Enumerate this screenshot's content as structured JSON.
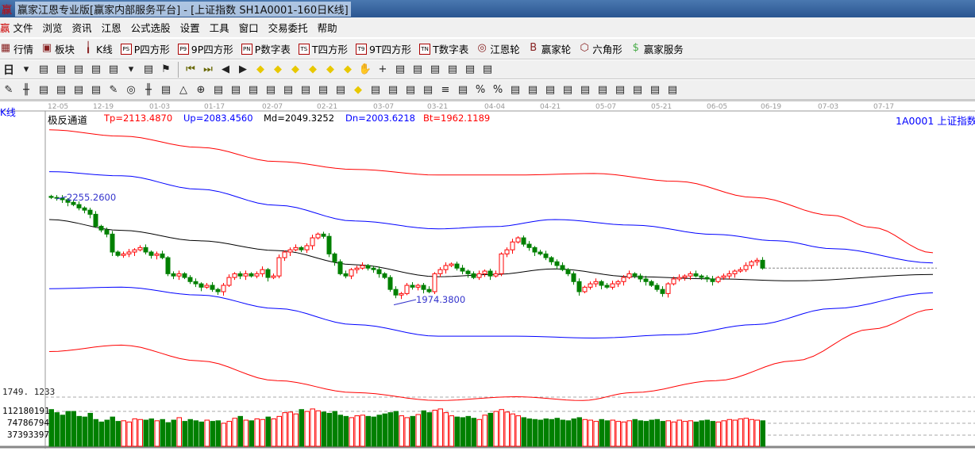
{
  "window": {
    "title": "赢家江恩专业版[赢家内部服务平台] - [上证指数  SH1A0001-160日K线]",
    "logo": "赢"
  },
  "menu": [
    "文件",
    "浏览",
    "资讯",
    "江恩",
    "公式选股",
    "设置",
    "工具",
    "窗口",
    "交易委托",
    "帮助"
  ],
  "toolbar1": [
    {
      "icon": "calendar-grid-icon",
      "g": "▦",
      "label": "行情"
    },
    {
      "icon": "sector-blocks-icon",
      "g": "▣",
      "label": "板块"
    },
    {
      "icon": "candlestick-icon",
      "g": "╽",
      "label": "K线"
    },
    {
      "icon": "ps-icon",
      "g": "PS",
      "label": "P四方形"
    },
    {
      "icon": "p9-icon",
      "g": "P9",
      "label": "9P四方形"
    },
    {
      "icon": "pn-icon",
      "g": "PN",
      "label": "P数字表"
    },
    {
      "icon": "ts-icon",
      "g": "TS",
      "label": "T四方形"
    },
    {
      "icon": "t9-icon",
      "g": "T9",
      "label": "9T四方形"
    },
    {
      "icon": "tn-icon",
      "g": "TN",
      "label": "T数字表"
    },
    {
      "icon": "gann-wheel-icon",
      "g": "◎",
      "label": "江恩轮"
    },
    {
      "icon": "big-wheel-icon",
      "g": "B",
      "label": "赢家轮"
    },
    {
      "icon": "hexagon-icon",
      "g": "⬡",
      "label": "六角形"
    },
    {
      "icon": "dollar-icon",
      "g": "$",
      "label": "赢家服务"
    }
  ],
  "toolbar2": {
    "period": "日",
    "icons": [
      "dropdown-icon",
      "map-icon",
      "clipboard-icon",
      "step-chart-3-icon",
      "step-chart-9-icon",
      "candle-type-icon",
      "dropdown-icon",
      "gann-face-icon",
      "flag-icon",
      "first-icon",
      "last-icon",
      "prev-icon",
      "next-icon",
      "left-diamond-icon",
      "right-diamond-icon",
      "expand-h-icon",
      "shrink-h-icon",
      "expand-icon",
      "shrink-icon",
      "hand-icon",
      "crosshair-icon",
      "lasso-icon",
      "shell-icon",
      "calendar-21-icon",
      "calculator-icon",
      "notebook-icon",
      "network-icon"
    ]
  },
  "toolbar3": {
    "icons": [
      "pencil-icon",
      "lines-icon",
      "gold-1-icon",
      "gold-2-icon",
      "fib-icon",
      "spiral-icon",
      "pencil-2-icon",
      "circle-icon",
      "lines-2-icon",
      "n2-icon",
      "triangle-icon",
      "target-icon",
      "web-icon",
      "square-web-icon",
      "slash-icon",
      "shen-icon",
      "ying-icon",
      "ruler-icon",
      "bracket-icon",
      "fan-icon",
      "diamond-grid-icon",
      "angle-icon",
      "wave-icon",
      "grid-icon",
      "grid-2-icon",
      "lines-3-icon",
      "table-icon",
      "percent-icon",
      "percent-2-icon",
      "coin-icon",
      "coin-2-icon",
      "arrow-icon",
      "bar-1-icon",
      "bar-2-icon",
      "bar-3-icon",
      "bar-4-icon",
      "bar-5-icon",
      "bar-6-icon",
      "bar-7-icon"
    ]
  },
  "chart_data": {
    "type": "candlestick",
    "left_label": "K线",
    "indicator_name": "极反通道",
    "indicators": {
      "Tp": "Tp=2113.4870",
      "Up": "Up=2083.4560",
      "Md": "Md=2049.3252",
      "Dn": "Dn=2003.6218",
      "Bt": "Bt=1962.1189"
    },
    "symbol": "1A0001 上证指数",
    "date_ticks": [
      "12-05",
      "12-19",
      "01-03",
      "01-17",
      "02-07",
      "02-21",
      "03-07",
      "03-21",
      "04-04",
      "04-21",
      "05-07",
      "05-21",
      "06-05",
      "06-19",
      "07-03",
      "07-17"
    ],
    "high_label": "2255.2600",
    "low_label": "1974.3800",
    "price_axis_label": "1749. 1233",
    "close": [
      2255,
      2253,
      2249,
      2242,
      2236,
      2227,
      2221,
      2210,
      2178,
      2168,
      2157,
      2109,
      2100,
      2104,
      2109,
      2115,
      2121,
      2109,
      2100,
      2104,
      2094,
      2051,
      2045,
      2051,
      2041,
      2030,
      2024,
      2015,
      2020,
      2009,
      2003,
      2020,
      2041,
      2051,
      2045,
      2051,
      2045,
      2051,
      2062,
      2041,
      2045,
      2094,
      2109,
      2115,
      2121,
      2115,
      2126,
      2147,
      2157,
      2151,
      2104,
      2083,
      2051,
      2045,
      2062,
      2066,
      2073,
      2066,
      2062,
      2051,
      2041,
      2009,
      1994,
      1998,
      2020,
      2015,
      2020,
      2009,
      2003,
      2051,
      2062,
      2073,
      2077,
      2066,
      2058,
      2051,
      2041,
      2051,
      2058,
      2045,
      2051,
      2104,
      2115,
      2136,
      2147,
      2130,
      2121,
      2109,
      2104,
      2094,
      2083,
      2073,
      2062,
      2051,
      2030,
      2003,
      2015,
      2024,
      2030,
      2020,
      2015,
      2024,
      2030,
      2041,
      2051,
      2045,
      2037,
      2030,
      2020,
      2009,
      1998,
      2024,
      2037,
      2041,
      2045,
      2051,
      2045,
      2041,
      2037,
      2030,
      2041,
      2045,
      2051,
      2058,
      2062,
      2073,
      2083,
      2087,
      2066
    ],
    "channels": {
      "Tp": [
        [
          0,
          2436
        ],
        [
          13,
          2419
        ],
        [
          27,
          2389
        ],
        [
          41,
          2351
        ],
        [
          55,
          2330
        ],
        [
          70,
          2315
        ],
        [
          84,
          2315
        ],
        [
          98,
          2319
        ],
        [
          113,
          2298
        ],
        [
          127,
          2255
        ],
        [
          141,
          2207
        ],
        [
          148,
          2175
        ],
        [
          159,
          2107
        ]
      ],
      "Up": [
        [
          0,
          2324
        ],
        [
          13,
          2313
        ],
        [
          27,
          2277
        ],
        [
          41,
          2234
        ],
        [
          55,
          2192
        ],
        [
          70,
          2171
        ],
        [
          80,
          2177
        ],
        [
          91,
          2196
        ],
        [
          105,
          2181
        ],
        [
          120,
          2156
        ],
        [
          131,
          2139
        ],
        [
          141,
          2118
        ],
        [
          159,
          2080
        ]
      ],
      "Md": [
        [
          0,
          2196
        ],
        [
          13,
          2167
        ],
        [
          27,
          2139
        ],
        [
          41,
          2113
        ],
        [
          55,
          2075
        ],
        [
          70,
          2043
        ],
        [
          80,
          2049
        ],
        [
          91,
          2064
        ],
        [
          105,
          2043
        ],
        [
          120,
          2037
        ],
        [
          134,
          2032
        ],
        [
          159,
          2049
        ]
      ],
      "Dn": [
        [
          0,
          2011
        ],
        [
          13,
          2015
        ],
        [
          27,
          1994
        ],
        [
          41,
          1958
        ],
        [
          55,
          1915
        ],
        [
          70,
          1884
        ],
        [
          84,
          1884
        ],
        [
          98,
          1879
        ],
        [
          113,
          1888
        ],
        [
          127,
          1915
        ],
        [
          141,
          1958
        ],
        [
          159,
          2000
        ]
      ],
      "Bt": [
        [
          0,
          1843
        ],
        [
          13,
          1860
        ],
        [
          27,
          1818
        ],
        [
          41,
          1765
        ],
        [
          55,
          1733
        ],
        [
          70,
          1712
        ],
        [
          84,
          1722
        ],
        [
          96,
          1712
        ],
        [
          105,
          1733
        ],
        [
          120,
          1765
        ],
        [
          134,
          1818
        ],
        [
          148,
          1903
        ],
        [
          159,
          1956
        ]
      ]
    },
    "volume": {
      "ticks": [
        "112180191",
        "74786794",
        "37393397"
      ],
      "tick_values": [
        112180191,
        74786794,
        37393397
      ],
      "values": [
        118000000,
        108000000,
        100000000,
        112000000,
        112000000,
        96000000,
        94000000,
        106000000,
        86000000,
        78000000,
        84000000,
        94000000,
        80000000,
        82000000,
        78000000,
        88000000,
        86000000,
        84000000,
        88000000,
        82000000,
        86000000,
        76000000,
        84000000,
        92000000,
        80000000,
        86000000,
        82000000,
        78000000,
        84000000,
        80000000,
        82000000,
        74000000,
        80000000,
        90000000,
        96000000,
        84000000,
        82000000,
        88000000,
        86000000,
        94000000,
        88000000,
        96000000,
        108000000,
        110000000,
        104000000,
        118000000,
        112000000,
        120000000,
        114000000,
        110000000,
        106000000,
        112000000,
        100000000,
        96000000,
        92000000,
        98000000,
        100000000,
        96000000,
        94000000,
        100000000,
        104000000,
        108000000,
        112000000,
        98000000,
        92000000,
        96000000,
        102000000,
        114000000,
        108000000,
        116000000,
        120000000,
        108000000,
        98000000,
        94000000,
        92000000,
        96000000,
        90000000,
        86000000,
        100000000,
        106000000,
        112000000,
        118000000,
        110000000,
        104000000,
        98000000,
        92000000,
        88000000,
        86000000,
        84000000,
        88000000,
        86000000,
        90000000,
        84000000,
        82000000,
        88000000,
        92000000,
        86000000,
        84000000,
        80000000,
        86000000,
        82000000,
        84000000,
        80000000,
        78000000,
        82000000,
        86000000,
        82000000,
        80000000,
        84000000,
        86000000,
        80000000,
        82000000,
        78000000,
        84000000,
        80000000,
        82000000,
        78000000,
        82000000,
        84000000,
        80000000,
        78000000,
        82000000,
        86000000,
        84000000,
        88000000,
        90000000,
        86000000,
        84000000,
        82000000
      ]
    },
    "colors": {
      "up": "#ff0000",
      "down": "#008000",
      "upper_band": "#0000ff",
      "mid": "#000000",
      "text_blue": "#0000ff",
      "text_red": "#ff0000"
    }
  }
}
